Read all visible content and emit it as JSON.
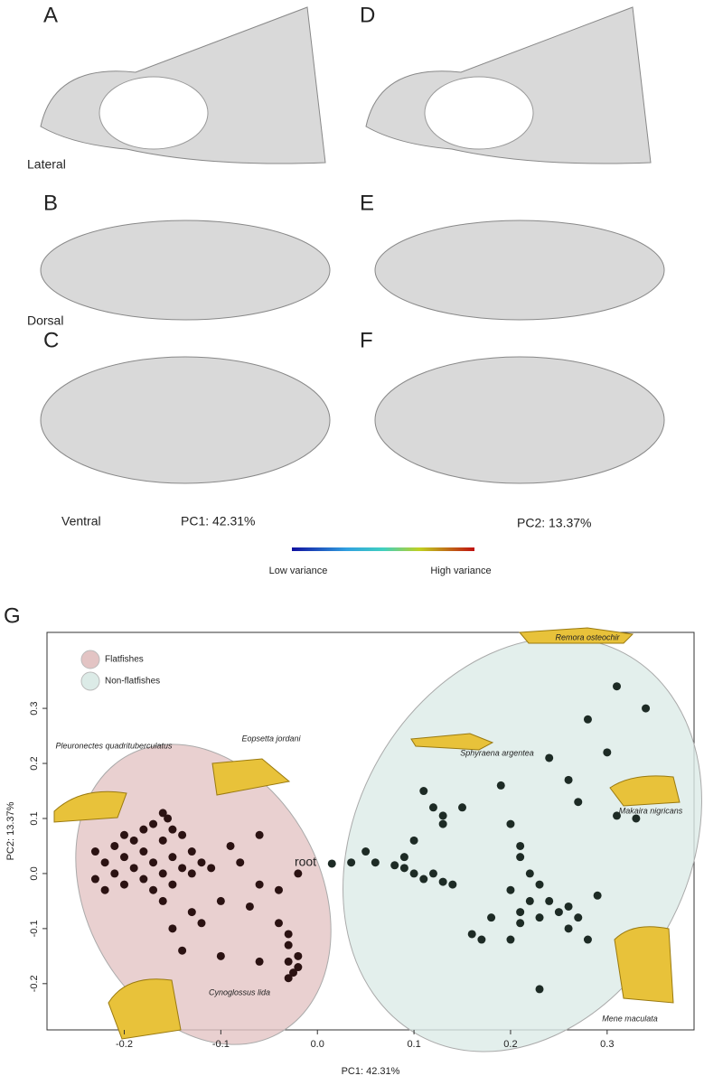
{
  "panel_labels": [
    "A",
    "B",
    "C",
    "D",
    "E",
    "F",
    "G"
  ],
  "view_labels": [
    "Lateral",
    "Dorsal",
    "Ventral"
  ],
  "pc_labels": [
    "PC1: 42.31%",
    "PC2: 13.37%"
  ],
  "colorbar": {
    "low": "Low variance",
    "high": "High variance"
  },
  "chart_data": {
    "type": "scatter",
    "xlabel": "PC1: 42.31%",
    "ylabel": "PC2: 13.37%",
    "xlim": [
      -0.28,
      0.39
    ],
    "ylim": [
      -0.284,
      0.438
    ],
    "xticks": [
      -0.2,
      -0.1,
      {
        "value": 0,
        "label": "0.0"
      },
      0.1,
      0.2,
      0.3
    ],
    "yticks": [
      -0.2,
      -0.1,
      {
        "value": 0,
        "label": "0.0"
      },
      0.1,
      0.2,
      0.3
    ],
    "legend": "top-left",
    "series": [
      {
        "name": "Flatfishes",
        "color": "#2b1212",
        "region_color": "#e3c4c4",
        "x": [
          -0.16,
          -0.155,
          -0.17,
          -0.18,
          -0.15,
          -0.2,
          -0.19,
          -0.16,
          -0.14,
          -0.21,
          -0.23,
          -0.22,
          -0.2,
          -0.18,
          -0.17,
          -0.15,
          -0.13,
          -0.12,
          -0.14,
          -0.16,
          -0.19,
          -0.21,
          -0.23,
          -0.22,
          -0.2,
          -0.18,
          -0.17,
          -0.15,
          -0.13,
          -0.11,
          -0.09,
          -0.06,
          -0.08,
          -0.06,
          -0.07,
          -0.1,
          -0.16,
          -0.13,
          -0.12,
          -0.15,
          -0.14,
          -0.04,
          -0.04,
          -0.03,
          -0.03,
          -0.02,
          -0.03,
          -0.02,
          -0.025,
          -0.03,
          -0.1,
          -0.06,
          -0.02
        ],
        "values": [
          0.11,
          0.1,
          0.09,
          0.08,
          0.08,
          0.07,
          0.06,
          0.06,
          0.07,
          0.05,
          0.04,
          0.02,
          0.03,
          0.04,
          0.02,
          0.03,
          0.04,
          0.02,
          0.01,
          0.0,
          0.01,
          0.0,
          -0.01,
          -0.03,
          -0.02,
          -0.01,
          -0.03,
          -0.02,
          0.0,
          0.01,
          0.05,
          0.07,
          0.02,
          -0.02,
          -0.06,
          -0.05,
          -0.05,
          -0.07,
          -0.09,
          -0.1,
          -0.14,
          -0.03,
          -0.09,
          -0.11,
          -0.13,
          -0.15,
          -0.16,
          -0.17,
          -0.18,
          -0.19,
          -0.15,
          -0.16,
          0.0
        ]
      },
      {
        "name": "Non-flatfishes",
        "color": "#1d2b25",
        "region_color": "#dcebe7",
        "x": [
          0.015,
          0.035,
          0.05,
          0.06,
          0.08,
          0.09,
          0.1,
          0.1,
          0.11,
          0.12,
          0.13,
          0.14,
          0.11,
          0.12,
          0.13,
          0.15,
          0.13,
          0.19,
          0.2,
          0.24,
          0.26,
          0.28,
          0.31,
          0.34,
          0.3,
          0.27,
          0.31,
          0.33,
          0.21,
          0.22,
          0.23,
          0.2,
          0.22,
          0.24,
          0.21,
          0.23,
          0.25,
          0.26,
          0.27,
          0.26,
          0.28,
          0.21,
          0.2,
          0.17,
          0.16,
          0.18,
          0.23,
          0.29,
          0.21,
          0.09
        ],
        "values": [
          0.018,
          0.02,
          0.04,
          0.02,
          0.015,
          0.01,
          0.06,
          0.0,
          -0.01,
          0.0,
          -0.015,
          -0.02,
          0.15,
          0.12,
          0.105,
          0.12,
          0.09,
          0.16,
          0.09,
          0.21,
          0.17,
          0.28,
          0.34,
          0.3,
          0.22,
          0.13,
          0.105,
          0.1,
          0.03,
          0.0,
          -0.02,
          -0.03,
          -0.05,
          -0.05,
          -0.07,
          -0.08,
          -0.07,
          -0.06,
          -0.08,
          -0.1,
          -0.12,
          -0.09,
          -0.12,
          -0.12,
          -0.11,
          -0.08,
          -0.21,
          -0.04,
          0.05,
          0.03
        ]
      }
    ],
    "annotations": [
      "Remora osteochir",
      "Sphyraena argentea",
      "Makaira nigricans",
      "Mene maculata",
      "Pleuronectes quadrituberculatus",
      "Eopsetta jordani",
      "Cynoglossus lida",
      "root"
    ]
  }
}
